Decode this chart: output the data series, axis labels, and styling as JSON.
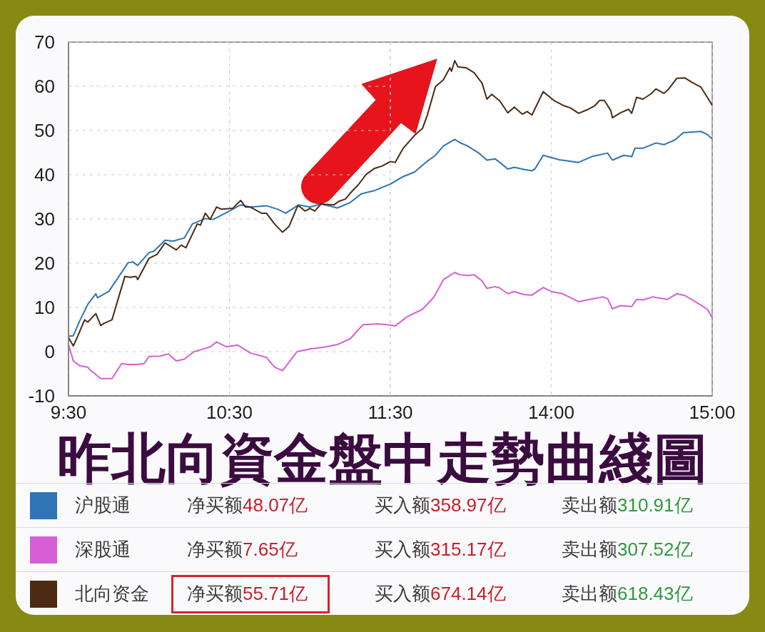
{
  "chart_data": [
    {
      "type": "line",
      "title": "昨北向資金盤中走勢曲綫圖",
      "xlim": [
        9.5,
        11.5
      ],
      "xticks": [
        {
          "value": 9.5,
          "label": "9:30"
        },
        {
          "value": 10.5,
          "label": "10:30"
        },
        {
          "value": 11.5,
          "label": "11:30"
        }
      ],
      "ylim": [
        -10,
        70
      ],
      "yticks": [
        -10,
        0,
        10,
        20,
        30,
        40,
        50,
        60,
        70
      ],
      "grid": true,
      "legend": "bottom",
      "series": [
        {
          "name": "沪股通",
          "color": "#2f74b5",
          "x": [
            9.5,
            9.53,
            9.57,
            9.62,
            9.63,
            9.67,
            9.68,
            9.75,
            9.87,
            9.9,
            9.93,
            10.0,
            10.03,
            10.1,
            10.15,
            10.22,
            10.27,
            10.35,
            10.4,
            10.5,
            10.57,
            10.63,
            10.73,
            10.8,
            10.85,
            10.93,
            11.0,
            11.07,
            11.17,
            11.25,
            11.32,
            11.4,
            11.5
          ],
          "values": [
            3.5,
            3.6,
            7.0,
            10.7,
            11.2,
            13.1,
            12.2,
            13.6,
            20.1,
            20.3,
            19.5,
            22.4,
            22.7,
            25.2,
            25.0,
            25.7,
            28.9,
            30.1,
            29.9,
            31.8,
            33.2,
            32.7,
            33.0,
            32.2,
            31.3,
            33.2,
            32.7,
            33.4,
            32.5,
            33.7,
            35.7,
            36.4,
            37.9
          ]
        },
        {
          "name": "深股通",
          "color": "#d65fd6",
          "x": [
            9.5,
            9.53,
            9.57,
            9.62,
            9.63,
            9.7,
            9.77,
            9.83,
            9.87,
            9.92,
            9.97,
            10.0,
            10.07,
            10.12,
            10.17,
            10.22,
            10.28,
            10.33,
            10.38,
            10.42,
            10.48,
            10.55,
            10.63,
            10.73,
            10.78,
            10.83,
            10.92,
            11.0,
            11.1,
            11.17,
            11.25,
            11.33,
            11.42,
            11.5
          ],
          "values": [
            1.6,
            -2.1,
            -3.2,
            -3.5,
            -4.0,
            -6.1,
            -6.1,
            -2.7,
            -2.9,
            -2.9,
            -2.7,
            -1.1,
            -1.0,
            -0.5,
            -2.1,
            -1.7,
            0.0,
            0.5,
            1.1,
            2.2,
            1.1,
            1.5,
            -0.3,
            -1.3,
            -3.5,
            -4.3,
            0.0,
            0.6,
            1.1,
            1.6,
            2.9,
            6.1,
            6.3,
            6.0
          ]
        },
        {
          "name": "北向资金",
          "color": "#4d2a12",
          "x": [
            9.5,
            9.53,
            9.55,
            9.6,
            9.62,
            9.67,
            9.7,
            9.72,
            9.77,
            9.85,
            9.88,
            9.92,
            9.93,
            10.0,
            10.05,
            10.1,
            10.17,
            10.2,
            10.23,
            10.3,
            10.32,
            10.35,
            10.38,
            10.42,
            10.45,
            10.52,
            10.57,
            10.6,
            10.63,
            10.7,
            10.73,
            10.78,
            10.83,
            10.87,
            10.92,
            10.93,
            10.97,
            11.0,
            11.03,
            11.07,
            11.15,
            11.18,
            11.22,
            11.25,
            11.3,
            11.35,
            11.4,
            11.45,
            11.5
          ],
          "values": [
            3.2,
            1.3,
            2.9,
            7.2,
            6.7,
            8.6,
            5.9,
            6.4,
            7.2,
            17.0,
            16.8,
            17.0,
            16.3,
            21.1,
            22.0,
            24.6,
            23.0,
            24.1,
            23.5,
            28.9,
            28.6,
            31.3,
            29.9,
            32.7,
            32.2,
            32.4,
            34.2,
            32.7,
            32.7,
            31.3,
            31.3,
            28.9,
            27.0,
            28.3,
            32.6,
            33.0,
            31.8,
            32.4,
            31.8,
            33.4,
            33.2,
            34.0,
            34.5,
            35.8,
            37.7,
            40.1,
            41.4,
            42.0,
            43.0
          ]
        }
      ],
      "annotations": [
        "净买额48.07亿",
        "买入额358.97亿",
        "卖出额310.91亿",
        "净买额7.65亿",
        "买入额315.17亿",
        "卖出额307.52亿",
        "净买额55.71亿",
        "买入额674.14亿",
        "卖出额618.43亿"
      ]
    },
    {
      "type": "line",
      "xlim": [
        13,
        15
      ],
      "xticks": [
        {
          "value": 14,
          "label": "14:00"
        },
        {
          "value": 15,
          "label": "15:00"
        }
      ],
      "ylim": [
        -10,
        70
      ],
      "yticks": [
        -10,
        0,
        10,
        20,
        30,
        40,
        50,
        60,
        70
      ],
      "grid": true,
      "tick_labels": "x",
      "series": [
        {
          "color": "#2f74b5",
          "x": [
            13.0,
            13.08,
            13.15,
            13.22,
            13.28,
            13.33,
            13.4,
            13.43,
            13.48,
            13.55,
            13.6,
            13.65,
            13.68,
            13.73,
            13.77,
            13.83,
            13.88,
            13.9,
            13.95,
            14.0,
            14.05,
            14.17,
            14.25,
            14.35,
            14.38,
            14.45,
            14.5,
            14.52,
            14.57,
            14.65,
            14.7,
            14.77,
            14.82,
            14.9,
            14.93,
            14.97,
            15.0
          ],
          "values": [
            37.9,
            39.6,
            40.6,
            42.8,
            44.4,
            46.5,
            48.0,
            47.3,
            46.5,
            44.9,
            43.3,
            43.6,
            42.8,
            41.3,
            41.7,
            41.2,
            40.9,
            41.4,
            44.4,
            43.9,
            43.4,
            42.8,
            44.1,
            44.9,
            43.3,
            44.4,
            44.1,
            46.0,
            46.0,
            47.2,
            46.8,
            47.9,
            49.5,
            49.7,
            49.8,
            49.1,
            48.1
          ]
        },
        {
          "color": "#d65fd6",
          "x": [
            13.0,
            13.03,
            13.1,
            13.2,
            13.27,
            13.33,
            13.4,
            13.43,
            13.48,
            13.52,
            13.57,
            13.6,
            13.65,
            13.68,
            13.73,
            13.77,
            13.83,
            13.88,
            13.95,
            14.0,
            14.07,
            14.17,
            14.25,
            14.32,
            14.35,
            14.38,
            14.43,
            14.5,
            14.53,
            14.57,
            14.63,
            14.72,
            14.78,
            14.83,
            14.9,
            14.97,
            15.0
          ],
          "values": [
            6.0,
            5.8,
            7.8,
            9.6,
            12.3,
            16.3,
            17.9,
            17.4,
            17.2,
            17.4,
            16.0,
            14.3,
            14.7,
            14.4,
            13.1,
            13.6,
            12.9,
            12.8,
            14.5,
            13.6,
            13.1,
            11.3,
            11.9,
            12.4,
            12.0,
            9.7,
            10.4,
            10.2,
            11.8,
            11.7,
            12.4,
            11.8,
            13.1,
            12.7,
            11.2,
            9.6,
            7.7
          ]
        },
        {
          "color": "#4d2a12",
          "x": [
            13.0,
            13.03,
            13.08,
            13.15,
            13.2,
            13.23,
            13.28,
            13.33,
            13.37,
            13.38,
            13.4,
            13.42,
            13.47,
            13.52,
            13.57,
            13.6,
            13.63,
            13.68,
            13.73,
            13.77,
            13.82,
            13.85,
            13.88,
            13.95,
            14.02,
            14.08,
            14.12,
            14.17,
            14.23,
            14.27,
            14.3,
            14.33,
            14.37,
            14.38,
            14.43,
            14.48,
            14.5,
            14.53,
            14.57,
            14.62,
            14.65,
            14.7,
            14.73,
            14.78,
            14.83,
            14.87,
            14.93,
            14.97,
            15.0
          ],
          "values": [
            43.0,
            42.8,
            46.0,
            48.9,
            50.5,
            53.5,
            59.9,
            61.5,
            64.2,
            63.4,
            65.8,
            64.4,
            64.2,
            63.1,
            60.7,
            57.1,
            58.2,
            56.7,
            54.0,
            55.3,
            53.7,
            54.3,
            53.5,
            58.8,
            56.7,
            55.6,
            55.1,
            53.9,
            54.8,
            55.6,
            56.8,
            56.8,
            54.5,
            52.9,
            54.0,
            54.8,
            53.9,
            57.5,
            57.1,
            58.3,
            59.4,
            58.4,
            59.4,
            61.8,
            61.9,
            61.0,
            59.8,
            57.5,
            55.7
          ]
        }
      ]
    }
  ]
}
